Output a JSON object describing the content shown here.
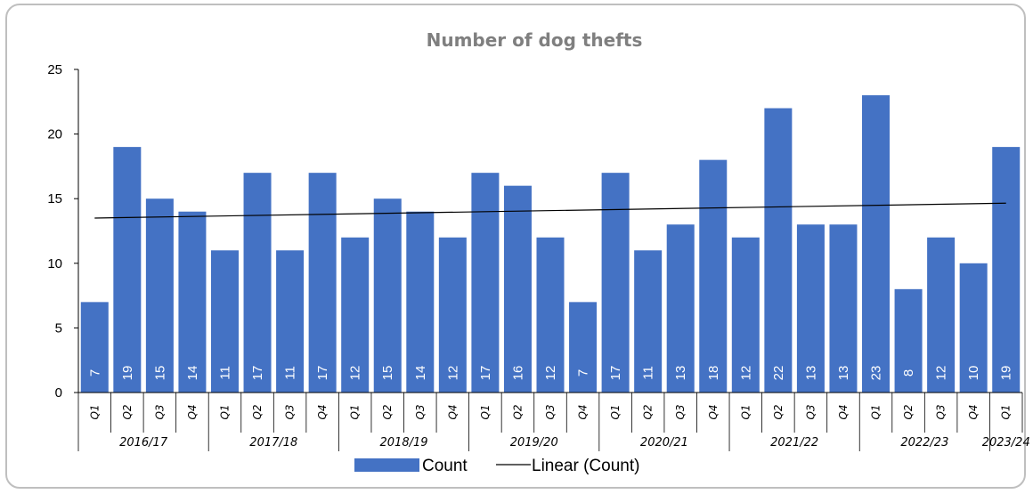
{
  "chart_data": {
    "type": "bar",
    "title": "Number of dog thefts",
    "xlabel": "",
    "ylabel": "",
    "ylim": [
      0,
      25
    ],
    "yticks": [
      0,
      5,
      10,
      15,
      20,
      25
    ],
    "grid": false,
    "legend_position": "bottom",
    "categories": [
      "Q1",
      "Q2",
      "Q3",
      "Q4",
      "Q1",
      "Q2",
      "Q3",
      "Q4",
      "Q1",
      "Q2",
      "Q3",
      "Q4",
      "Q1",
      "Q2",
      "Q3",
      "Q4",
      "Q1",
      "Q2",
      "Q3",
      "Q4",
      "Q1",
      "Q2",
      "Q3",
      "Q4",
      "Q1",
      "Q2",
      "Q3",
      "Q4",
      "Q1"
    ],
    "groups": [
      {
        "label": "2016/17",
        "span": 4
      },
      {
        "label": "2017/18",
        "span": 4
      },
      {
        "label": "2018/19",
        "span": 4
      },
      {
        "label": "2019/20",
        "span": 4
      },
      {
        "label": "2020/21",
        "span": 4
      },
      {
        "label": "2021/22",
        "span": 4
      },
      {
        "label": "2022/23",
        "span": 4
      },
      {
        "label": "2023/24",
        "span": 1
      }
    ],
    "series": [
      {
        "name": "Count",
        "color": "#4472c4",
        "values": [
          7,
          19,
          15,
          14,
          11,
          17,
          11,
          17,
          12,
          15,
          14,
          12,
          17,
          16,
          12,
          7,
          17,
          11,
          13,
          18,
          12,
          22,
          13,
          13,
          23,
          8,
          12,
          10,
          19
        ]
      }
    ],
    "trendline": {
      "name": "Linear (Count)",
      "color": "#000000",
      "start": 13.5,
      "end": 14.65
    }
  }
}
